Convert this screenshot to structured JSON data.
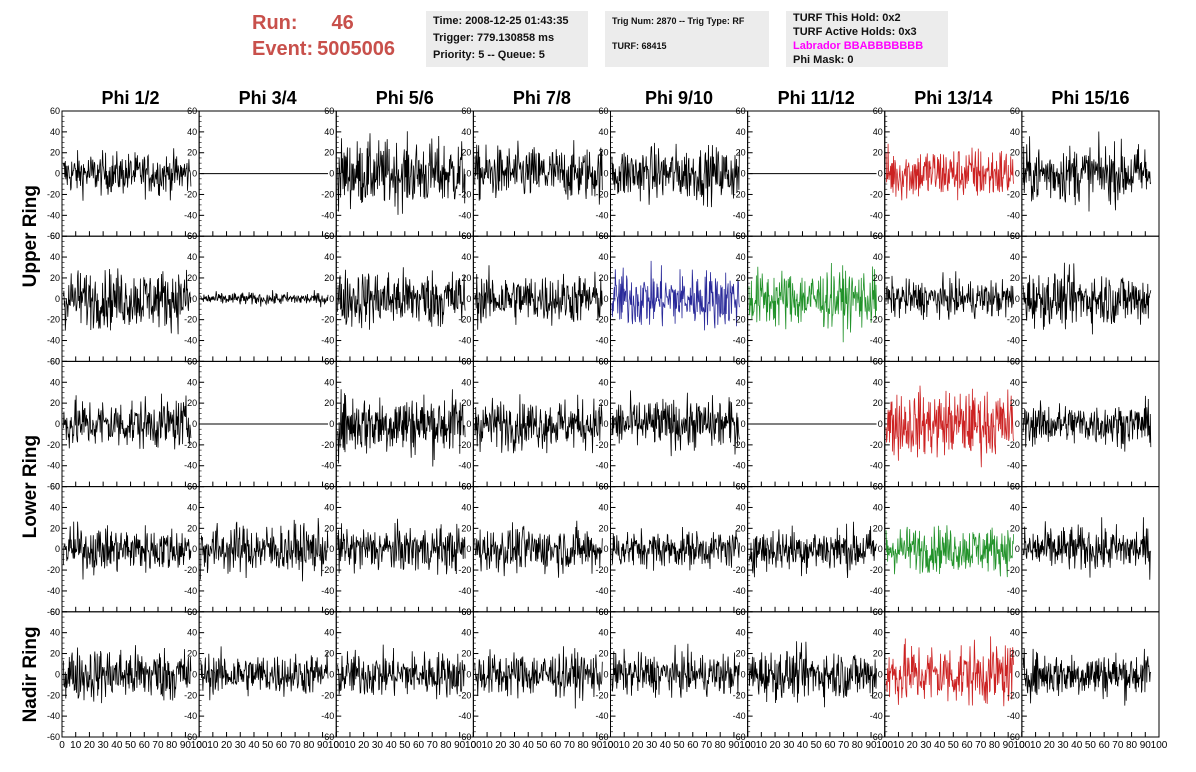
{
  "header": {
    "run_label": "Run:",
    "run_value": "46",
    "event_label": "Event:",
    "event_value": "5005006",
    "time": "Time: 2008-12-25 01:43:35",
    "trigger": "Trigger: 779.130858 ms",
    "priority": "Priority: 5 -- Queue: 5",
    "trig_num": "Trig Num: 2870 -- Trig Type: RF",
    "turf": "TURF: 68415",
    "turf_this_hold": "TURF This Hold: 0x2",
    "turf_active_holds": "TURF Active Holds: 0x3",
    "labrador": "Labrador BBABBBBBBB",
    "phi_mask": "Phi Mask: 0"
  },
  "colors": {
    "header_red": "#c8504b",
    "labrador_magenta": "#ff00ff",
    "box_bg": "#ececec",
    "trace_black": "#000000",
    "trace_red": "#cc2222",
    "trace_blue": "#2a2a9a",
    "trace_green": "#22922a"
  },
  "chart_data": {
    "type": "line",
    "columns": [
      "Phi 1/2",
      "Phi 3/4",
      "Phi 5/6",
      "Phi 7/8",
      "Phi 9/10",
      "Phi 11/12",
      "Phi 13/14",
      "Phi 15/16"
    ],
    "row_groups": [
      {
        "label": "Upper Ring",
        "rows": [
          0,
          1
        ]
      },
      {
        "label": "Lower Ring",
        "rows": [
          2,
          3
        ]
      },
      {
        "label": "Nadir Ring",
        "rows": [
          4
        ]
      }
    ],
    "xlim": [
      0,
      100
    ],
    "ylim": [
      -60,
      60
    ],
    "x_ticks": [
      0,
      10,
      20,
      30,
      40,
      50,
      60,
      70,
      80,
      90,
      100
    ],
    "y_ticks": [
      -60,
      -40,
      -20,
      0,
      20,
      40,
      60
    ],
    "grid": false,
    "panels": [
      [
        {
          "color": "black",
          "amp": 10
        },
        {
          "color": "black",
          "amp": 0
        },
        {
          "color": "black",
          "amp": 16
        },
        {
          "color": "black",
          "amp": 13
        },
        {
          "color": "black",
          "amp": 13
        },
        {
          "color": "black",
          "amp": 0
        },
        {
          "color": "red",
          "amp": 13
        },
        {
          "color": "black",
          "amp": 14
        }
      ],
      [
        {
          "color": "black",
          "amp": 14
        },
        {
          "color": "black",
          "amp": 3
        },
        {
          "color": "black",
          "amp": 14
        },
        {
          "color": "black",
          "amp": 12
        },
        {
          "color": "blue",
          "amp": 14
        },
        {
          "color": "green",
          "amp": 14
        },
        {
          "color": "black",
          "amp": 9
        },
        {
          "color": "black",
          "amp": 13
        }
      ],
      [
        {
          "color": "black",
          "amp": 12
        },
        {
          "color": "black",
          "amp": 0
        },
        {
          "color": "black",
          "amp": 15
        },
        {
          "color": "black",
          "amp": 12
        },
        {
          "color": "black",
          "amp": 12
        },
        {
          "color": "black",
          "amp": 0
        },
        {
          "color": "red",
          "amp": 16
        },
        {
          "color": "black",
          "amp": 10
        }
      ],
      [
        {
          "color": "black",
          "amp": 11
        },
        {
          "color": "black",
          "amp": 12
        },
        {
          "color": "black",
          "amp": 11
        },
        {
          "color": "black",
          "amp": 11
        },
        {
          "color": "black",
          "amp": 9
        },
        {
          "color": "black",
          "amp": 11
        },
        {
          "color": "green",
          "amp": 11
        },
        {
          "color": "black",
          "amp": 11
        }
      ],
      [
        {
          "color": "black",
          "amp": 13
        },
        {
          "color": "black",
          "amp": 10
        },
        {
          "color": "black",
          "amp": 11
        },
        {
          "color": "black",
          "amp": 11
        },
        {
          "color": "black",
          "amp": 10
        },
        {
          "color": "black",
          "amp": 12
        },
        {
          "color": "red",
          "amp": 15
        },
        {
          "color": "black",
          "amp": 11
        }
      ]
    ]
  }
}
